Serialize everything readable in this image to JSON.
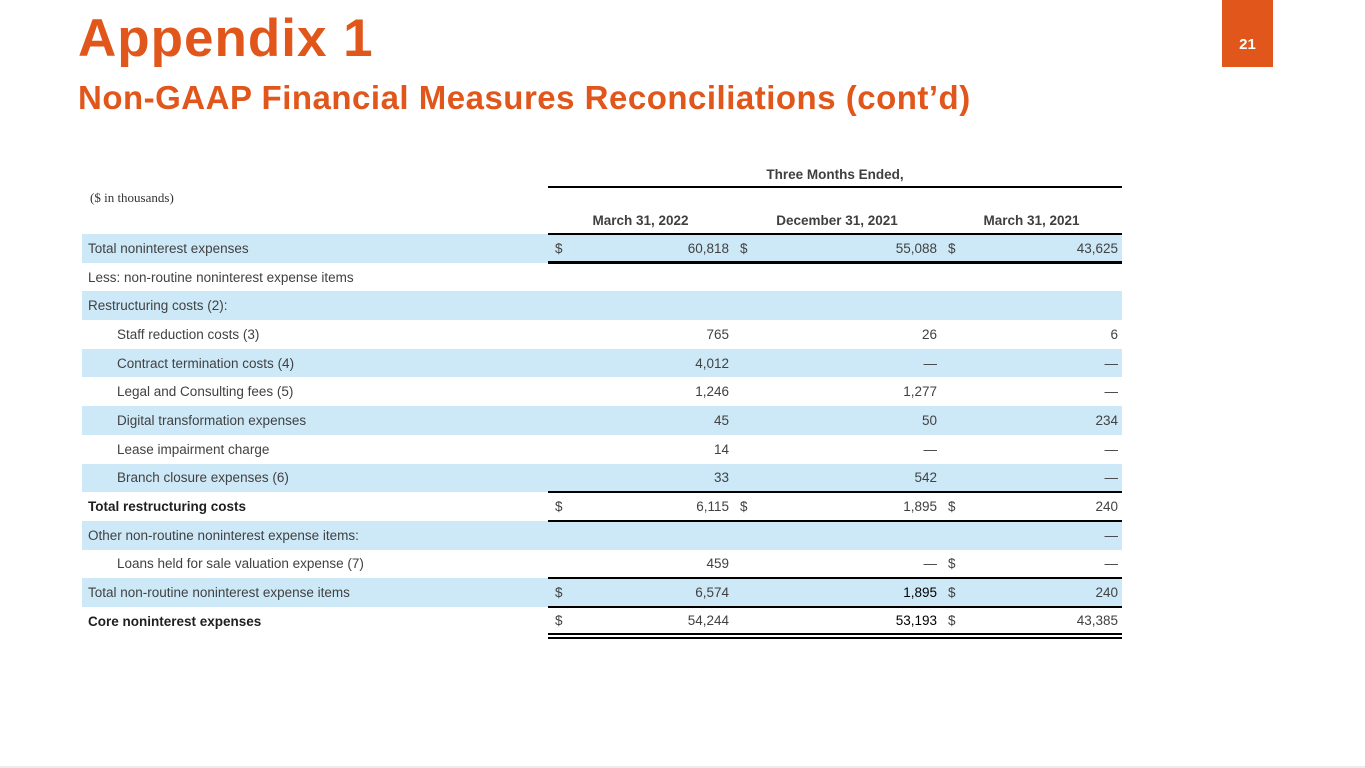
{
  "header": {
    "title": "Appendix 1",
    "subtitle": "Non-GAAP Financial Measures Reconciliations (cont’d)",
    "slide_number": "21"
  },
  "colors": {
    "accent_orange": "#E0561B",
    "row_shade_blue": "#CDE9F8",
    "table_text_gray": "#414141",
    "emphasis_black": "#000000"
  },
  "table": {
    "units_note": "($ in thousands)",
    "span_header": "Three Months Ended,",
    "columns": [
      "March 31, 2022",
      "December 31, 2021",
      "March 31, 2021"
    ],
    "rows": [
      {
        "label": "Total noninterest expenses",
        "indent": 0,
        "bold": false,
        "shaded": true,
        "border": "thick",
        "cells": [
          {
            "sign": "$",
            "value": "60,818"
          },
          {
            "sign": "$",
            "value": "55,088"
          },
          {
            "sign": "$",
            "value": "43,625"
          }
        ]
      },
      {
        "label": "Less: non-routine noninterest expense items",
        "indent": 0,
        "bold": false,
        "shaded": false,
        "border": "none",
        "cells": [
          {},
          {},
          {}
        ]
      },
      {
        "label": "Restructuring costs (2):",
        "indent": 0,
        "bold": false,
        "shaded": true,
        "border": "none",
        "cells": [
          {},
          {},
          {}
        ]
      },
      {
        "label": "Staff reduction costs (3)",
        "indent": 1,
        "bold": false,
        "shaded": false,
        "border": "none",
        "cells": [
          {
            "value": "765"
          },
          {
            "value": "26"
          },
          {
            "value": "6"
          }
        ]
      },
      {
        "label": "Contract termination costs (4)",
        "indent": 1,
        "bold": false,
        "shaded": true,
        "border": "none",
        "cells": [
          {
            "value": "4,012"
          },
          {
            "value": "—"
          },
          {
            "value": "—"
          }
        ]
      },
      {
        "label": "Legal and Consulting fees (5)",
        "indent": 1,
        "bold": false,
        "shaded": false,
        "border": "none",
        "cells": [
          {
            "value": "1,246"
          },
          {
            "value": "1,277"
          },
          {
            "value": "—"
          }
        ]
      },
      {
        "label": "Digital transformation expenses",
        "indent": 1,
        "bold": false,
        "shaded": true,
        "border": "none",
        "cells": [
          {
            "value": "45"
          },
          {
            "value": "50"
          },
          {
            "value": "234"
          }
        ]
      },
      {
        "label": "Lease impairment charge",
        "indent": 1,
        "bold": false,
        "shaded": false,
        "border": "none",
        "cells": [
          {
            "value": "14"
          },
          {
            "value": "—"
          },
          {
            "value": "—"
          }
        ]
      },
      {
        "label": "Branch closure expenses (6)",
        "indent": 1,
        "bold": false,
        "shaded": true,
        "border": "line",
        "cells": [
          {
            "value": "33"
          },
          {
            "value": "542"
          },
          {
            "value": "—"
          }
        ]
      },
      {
        "label": "Total restructuring costs",
        "indent": 0,
        "bold": true,
        "shaded": false,
        "border": "line",
        "cells": [
          {
            "sign": "$",
            "value": "6,115"
          },
          {
            "sign": "$",
            "value": "1,895"
          },
          {
            "sign": "$",
            "value": "240"
          }
        ]
      },
      {
        "label": "Other non-routine noninterest expense items:",
        "indent": 0,
        "bold": false,
        "shaded": true,
        "border": "none",
        "cells": [
          {},
          {},
          {
            "value": "—"
          }
        ]
      },
      {
        "label": "Loans held for sale valuation expense (7)",
        "indent": 1,
        "bold": false,
        "shaded": false,
        "border": "line",
        "cells": [
          {
            "value": "459"
          },
          {
            "value": "—"
          },
          {
            "sign": "$",
            "value": "—"
          }
        ]
      },
      {
        "label": "Total non-routine noninterest expense items",
        "indent": 0,
        "bold": false,
        "shaded": true,
        "border": "line",
        "cells": [
          {
            "sign": "$",
            "value": "6,574"
          },
          {
            "value": "1,895",
            "dark": true
          },
          {
            "sign": "$",
            "value": "240"
          }
        ]
      },
      {
        "label": "Core noninterest expenses",
        "indent": 0,
        "bold": true,
        "shaded": false,
        "border": "double",
        "cells": [
          {
            "sign": "$",
            "value": "54,244"
          },
          {
            "value": "53,193",
            "dark": true
          },
          {
            "sign": "$",
            "value": "43,385"
          }
        ]
      }
    ]
  }
}
